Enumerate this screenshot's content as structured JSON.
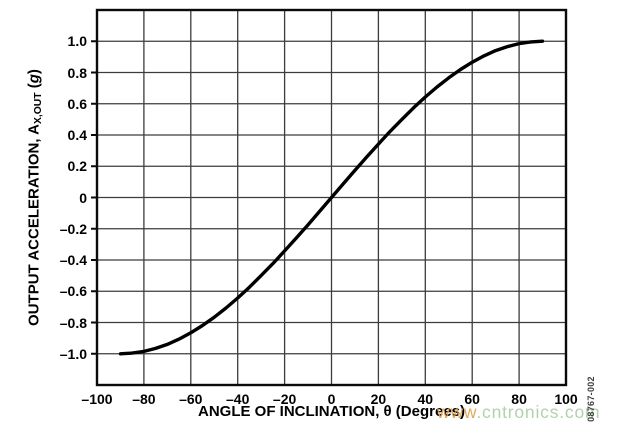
{
  "x_axis": {
    "title": "ANGLE OF INCLINATION, θ (Degrees)",
    "tick_values": [
      -100,
      -80,
      -60,
      -40,
      -20,
      0,
      20,
      40,
      60,
      80,
      100
    ],
    "tick_labels": [
      "–100",
      "–80",
      "–60",
      "–40",
      "–20",
      "0",
      "20",
      "40",
      "60",
      "80",
      "100"
    ]
  },
  "y_axis": {
    "label_main": "OUTPUT ACCELERATION, A",
    "label_sub": "X,OUT",
    "label_unit_open": " (",
    "label_unit_italic": "g",
    "label_unit_close": ")",
    "tick_values": [
      1.0,
      0.8,
      0.6,
      0.4,
      0.2,
      0,
      -0.2,
      -0.4,
      -0.6,
      -0.8,
      -1.0
    ],
    "tick_labels": [
      "1.0",
      "0.8",
      "0.6",
      "0.4",
      "0.2",
      "0",
      "–0.2",
      "–0.4",
      "–0.6",
      "–0.8",
      "–1.0"
    ]
  },
  "watermark": {
    "part1": "www",
    "part2": ".cntronics.com",
    "color1": "#e2a24e",
    "color2": "#accfa6"
  },
  "figure_number": {
    "text": "08767-002",
    "color": "#3f3f3f"
  },
  "colors": {
    "curve": "#000000",
    "grid": "#3c3c3c",
    "border": "#0a0a0a",
    "tick": "#0a0a0a"
  },
  "chart_data": {
    "type": "line",
    "title": "",
    "xlabel": "ANGLE OF INCLINATION, θ (Degrees)",
    "ylabel": "OUTPUT ACCELERATION, AX,OUT (g)",
    "xlim": [
      -100,
      100
    ],
    "ylim": [
      -1.2,
      1.2
    ],
    "grid": true,
    "grid_step": {
      "x": 20,
      "y": 0.2
    },
    "x_ticks": [
      -100,
      -80,
      -60,
      -40,
      -20,
      0,
      20,
      40,
      60,
      80,
      100
    ],
    "y_ticks": [
      -1.0,
      -0.8,
      -0.6,
      -0.4,
      -0.2,
      0,
      0.2,
      0.4,
      0.6,
      0.8,
      1.0
    ],
    "legend": "none",
    "series": [
      {
        "x": [
          -90,
          -85,
          -80,
          -75,
          -70,
          -65,
          -60,
          -55,
          -50,
          -45,
          -40,
          -35,
          -30,
          -25,
          -20,
          -15,
          -10,
          -5,
          0,
          5,
          10,
          15,
          20,
          25,
          30,
          35,
          40,
          45,
          50,
          55,
          60,
          65,
          70,
          75,
          80,
          85,
          90
        ],
        "y": [
          -1.0,
          -0.996,
          -0.985,
          -0.966,
          -0.94,
          -0.906,
          -0.866,
          -0.819,
          -0.766,
          -0.707,
          -0.643,
          -0.574,
          -0.5,
          -0.423,
          -0.342,
          -0.259,
          -0.174,
          -0.087,
          0,
          0.087,
          0.174,
          0.259,
          0.342,
          0.423,
          0.5,
          0.574,
          0.643,
          0.707,
          0.766,
          0.819,
          0.866,
          0.906,
          0.94,
          0.966,
          0.985,
          0.996,
          1.0
        ]
      }
    ]
  }
}
